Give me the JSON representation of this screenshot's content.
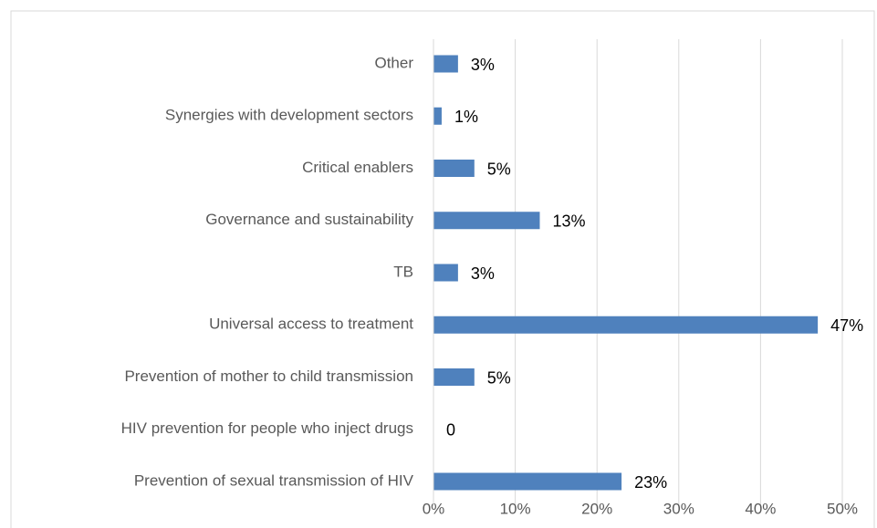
{
  "chart_data": {
    "type": "bar",
    "orientation": "horizontal",
    "categories": [
      "Other",
      "Synergies with development sectors",
      "Critical enablers",
      "Governance and sustainability",
      "TB",
      "Universal access to treatment",
      "Prevention of mother to child transmission",
      "HIV prevention for people who inject drugs",
      "Prevention of sexual transmission of HIV"
    ],
    "values": [
      3,
      1,
      5,
      13,
      3,
      47,
      5,
      0,
      23
    ],
    "value_labels": [
      "3%",
      "1%",
      "5%",
      "13%",
      "3%",
      "47%",
      "5%",
      "0",
      "23%"
    ],
    "color": "#4f81bd",
    "xlim": [
      0,
      50
    ],
    "xticks": [
      {
        "value": 0,
        "label": "0%"
      },
      {
        "value": 10,
        "label": "10%"
      },
      {
        "value": 20,
        "label": "20%"
      },
      {
        "value": 30,
        "label": "30%"
      },
      {
        "value": 40,
        "label": "40%"
      },
      {
        "value": 50,
        "label": "50%"
      }
    ],
    "grid": true
  }
}
